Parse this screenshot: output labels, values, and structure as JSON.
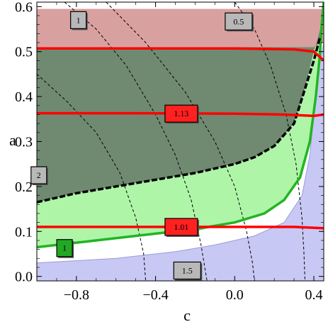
{
  "chart_data": {
    "type": "contour",
    "xlabel": "c",
    "ylabel": "a",
    "xlim": [
      -1.0,
      0.45
    ],
    "ylim": [
      -0.01,
      0.61
    ],
    "x_ticks": [
      {
        "v": -0.8,
        "label": "−0.8"
      },
      {
        "v": -0.4,
        "label": "−0.4"
      },
      {
        "v": 0.0,
        "label": "0.0"
      },
      {
        "v": 0.4,
        "label": "0.4"
      }
    ],
    "y_ticks": [
      {
        "v": 0.0,
        "label": "0.0"
      },
      {
        "v": 0.1,
        "label": "0.1"
      },
      {
        "v": 0.2,
        "label": "0.2"
      },
      {
        "v": 0.3,
        "label": "0.3"
      },
      {
        "v": 0.4,
        "label": "0.4"
      },
      {
        "v": 0.5,
        "label": "0.5"
      },
      {
        "v": 0.6,
        "label": "0.6"
      }
    ],
    "colors": {
      "red_region": "#d9a0a0",
      "dark_region": "#6f8a70",
      "light_green_region": "#aef5a8",
      "blue_region": "#c8c8f4",
      "white_band": "#ffffff",
      "green_line": "#22b422",
      "red_line": "#ff0000",
      "dashed_black": "#000000",
      "tag_gray": "#b8b8b8",
      "tag_red": "#ff2020",
      "tag_green": "#22a822"
    },
    "regions": {
      "red_top": [
        [
          -1.0,
          0.595
        ],
        [
          0.45,
          0.595
        ],
        [
          0.45,
          0.52
        ],
        [
          0.4,
          0.51
        ],
        [
          -1.0,
          0.51
        ]
      ],
      "dark": [
        [
          -1.0,
          0.51
        ],
        [
          0.4,
          0.51
        ],
        [
          0.43,
          0.52
        ],
        [
          0.45,
          0.58
        ],
        [
          0.42,
          0.53
        ],
        [
          0.4,
          0.5
        ],
        [
          0.35,
          0.41
        ],
        [
          0.3,
          0.34
        ],
        [
          0.2,
          0.29
        ],
        [
          0.1,
          0.265
        ],
        [
          0.0,
          0.25
        ],
        [
          -0.2,
          0.23
        ],
        [
          -0.4,
          0.215
        ],
        [
          -0.6,
          0.2
        ],
        [
          -0.8,
          0.185
        ],
        [
          -1.0,
          0.165
        ]
      ],
      "light_green": [
        [
          -1.0,
          0.165
        ],
        [
          -0.8,
          0.185
        ],
        [
          -0.6,
          0.2
        ],
        [
          -0.4,
          0.215
        ],
        [
          -0.2,
          0.23
        ],
        [
          0.0,
          0.25
        ],
        [
          0.1,
          0.265
        ],
        [
          0.2,
          0.29
        ],
        [
          0.3,
          0.34
        ],
        [
          0.35,
          0.41
        ],
        [
          0.4,
          0.5
        ],
        [
          0.42,
          0.53
        ],
        [
          0.45,
          0.61
        ],
        [
          0.42,
          0.47
        ],
        [
          0.38,
          0.3
        ],
        [
          0.33,
          0.22
        ],
        [
          0.25,
          0.17
        ],
        [
          0.15,
          0.14
        ],
        [
          0.0,
          0.12
        ],
        [
          -0.2,
          0.1
        ],
        [
          -0.4,
          0.095
        ],
        [
          -0.6,
          0.085
        ],
        [
          -0.8,
          0.075
        ],
        [
          -1.0,
          0.065
        ]
      ],
      "blue": [
        [
          -1.0,
          0.03
        ],
        [
          -0.6,
          0.04
        ],
        [
          -0.3,
          0.055
        ],
        [
          -0.1,
          0.07
        ],
        [
          0.1,
          0.09
        ],
        [
          0.25,
          0.12
        ],
        [
          0.34,
          0.18
        ],
        [
          0.38,
          0.27
        ],
        [
          0.4,
          0.36
        ],
        [
          0.42,
          0.45
        ],
        [
          0.45,
          0.52
        ],
        [
          0.45,
          -0.01
        ],
        [
          -1.0,
          -0.01
        ]
      ]
    },
    "series": [
      {
        "style": "green",
        "points": [
          [
            -1.0,
            0.065
          ],
          [
            -0.8,
            0.075
          ],
          [
            -0.6,
            0.085
          ],
          [
            -0.4,
            0.095
          ],
          [
            -0.2,
            0.105
          ],
          [
            0.0,
            0.12
          ],
          [
            0.15,
            0.14
          ],
          [
            0.25,
            0.17
          ],
          [
            0.33,
            0.22
          ],
          [
            0.38,
            0.3
          ],
          [
            0.41,
            0.4
          ],
          [
            0.43,
            0.49
          ],
          [
            0.44,
            0.56
          ],
          [
            0.45,
            0.61
          ]
        ]
      },
      {
        "style": "dashed-thick",
        "points": [
          [
            -1.0,
            0.165
          ],
          [
            -0.8,
            0.185
          ],
          [
            -0.6,
            0.2
          ],
          [
            -0.4,
            0.215
          ],
          [
            -0.2,
            0.23
          ],
          [
            0.0,
            0.25
          ],
          [
            0.1,
            0.265
          ],
          [
            0.2,
            0.29
          ],
          [
            0.3,
            0.34
          ],
          [
            0.35,
            0.41
          ],
          [
            0.4,
            0.48
          ],
          [
            0.43,
            0.53
          ]
        ]
      },
      {
        "style": "red",
        "label": "1.13",
        "points": [
          [
            -1.0,
            0.363
          ],
          [
            -0.5,
            0.363
          ],
          [
            0.0,
            0.362
          ],
          [
            0.25,
            0.36
          ],
          [
            0.4,
            0.357
          ],
          [
            0.45,
            0.36
          ]
        ]
      },
      {
        "style": "red",
        "label": "1.01",
        "points": [
          [
            -1.0,
            0.11
          ],
          [
            -0.5,
            0.11
          ],
          [
            0.0,
            0.11
          ],
          [
            0.3,
            0.11
          ],
          [
            0.45,
            0.107
          ]
        ]
      },
      {
        "style": "red",
        "points": [
          [
            -1.0,
            0.507
          ],
          [
            -0.5,
            0.507
          ],
          [
            0.0,
            0.507
          ],
          [
            0.3,
            0.505
          ],
          [
            0.4,
            0.5
          ],
          [
            0.45,
            0.48
          ]
        ]
      },
      {
        "style": "dashed",
        "label": "1",
        "points": [
          [
            -0.86,
            0.61
          ],
          [
            -0.7,
            0.55
          ],
          [
            -0.55,
            0.47
          ],
          [
            -0.4,
            0.36
          ],
          [
            -0.3,
            0.27
          ],
          [
            -0.22,
            0.17
          ],
          [
            -0.17,
            0.07
          ],
          [
            -0.14,
            -0.01
          ]
        ]
      },
      {
        "style": "dashed",
        "label": "0.5",
        "points": [
          [
            0.0,
            0.61
          ],
          [
            0.1,
            0.55
          ],
          [
            0.18,
            0.47
          ],
          [
            0.26,
            0.36
          ],
          [
            0.31,
            0.25
          ],
          [
            0.34,
            0.13
          ],
          [
            0.35,
            0.05
          ],
          [
            0.355,
            -0.01
          ]
        ]
      },
      {
        "style": "dashed",
        "label": "2",
        "points": [
          [
            -1.0,
            0.45
          ],
          [
            -0.85,
            0.39
          ],
          [
            -0.7,
            0.32
          ],
          [
            -0.58,
            0.23
          ],
          [
            -0.5,
            0.13
          ],
          [
            -0.46,
            0.05
          ],
          [
            -0.45,
            -0.01
          ]
        ]
      },
      {
        "style": "dashed",
        "label": "1.5",
        "points": [
          [
            -0.65,
            0.61
          ],
          [
            -0.45,
            0.52
          ],
          [
            -0.25,
            0.41
          ],
          [
            -0.1,
            0.3
          ],
          [
            0.0,
            0.2
          ],
          [
            0.06,
            0.1
          ],
          [
            0.09,
            0.03
          ],
          [
            0.1,
            -0.01
          ]
        ]
      }
    ],
    "tags": [
      {
        "text": "1",
        "x": -0.79,
        "y": 0.57,
        "style": "gray"
      },
      {
        "text": "0.5",
        "x": 0.02,
        "y": 0.567,
        "style": "gray"
      },
      {
        "text": "1.13",
        "x": -0.27,
        "y": 0.362,
        "style": "red"
      },
      {
        "text": "2",
        "x": -0.99,
        "y": 0.225,
        "style": "gray"
      },
      {
        "text": "1.01",
        "x": -0.27,
        "y": 0.11,
        "style": "red"
      },
      {
        "text": "1",
        "x": -0.86,
        "y": 0.063,
        "style": "green"
      },
      {
        "text": "1.5",
        "x": -0.24,
        "y": 0.013,
        "style": "gray"
      }
    ]
  }
}
